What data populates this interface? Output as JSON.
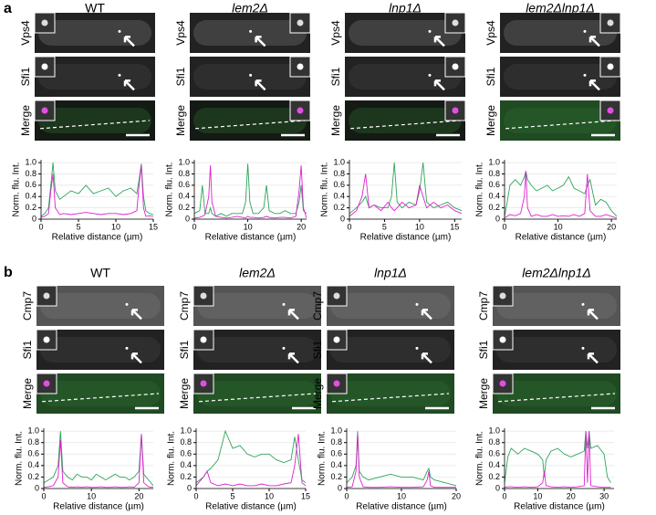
{
  "figure": {
    "a": {
      "label": "a",
      "strains": [
        "WT",
        "lem2Δ",
        "lnp1Δ",
        "lem2Δlnp1Δ"
      ],
      "channels": [
        "Vps4",
        "Sfi1",
        "Merge"
      ]
    },
    "b": {
      "label": "b",
      "strains": [
        "WT",
        "lem2Δ",
        "lnp1Δ",
        "lem2Δlnp1Δ"
      ],
      "channels": [
        "Cmp7",
        "Sfi1",
        "Merge"
      ]
    }
  },
  "chart_data": [
    {
      "type": "line",
      "xlabel": "Relative distance (µm)",
      "ylabel": "Norm. flu. Int.",
      "grid": true,
      "xlim": [
        0,
        15
      ],
      "xticks": [
        0,
        5,
        10,
        15
      ],
      "ylim": [
        0,
        1.05
      ],
      "yticks": [
        0,
        0.2,
        0.4,
        0.6,
        0.8,
        {
          "value": 1,
          "label": "1.0"
        }
      ],
      "x": [
        0,
        0.5,
        1,
        1.3,
        1.6,
        1.9,
        2.5,
        3,
        4,
        5,
        6,
        7,
        8,
        9,
        10,
        11,
        12,
        12.8,
        13.1,
        13.4,
        13.7,
        14,
        14.5,
        15
      ],
      "series": [
        {
          "color": "#2ca55a",
          "values": [
            0.05,
            0.1,
            0.2,
            0.6,
            1.0,
            0.5,
            0.35,
            0.4,
            0.5,
            0.45,
            0.6,
            0.45,
            0.5,
            0.55,
            0.4,
            0.5,
            0.55,
            0.45,
            0.7,
            0.98,
            0.4,
            0.15,
            0.1,
            0.08
          ]
        },
        {
          "color": "#e020d0",
          "values": [
            0.03,
            0.05,
            0.1,
            0.5,
            0.8,
            0.2,
            0.08,
            0.1,
            0.08,
            0.1,
            0.12,
            0.1,
            0.08,
            0.1,
            0.1,
            0.08,
            0.1,
            0.15,
            0.6,
            0.95,
            0.2,
            0.05,
            0.06,
            0.05
          ]
        }
      ]
    },
    {
      "type": "line",
      "xlabel": "Relative distance (µm)",
      "ylabel": "Norm. flu. Int.",
      "grid": true,
      "xlim": [
        0,
        21
      ],
      "xticks": [
        0,
        10,
        20
      ],
      "ylim": [
        0,
        1.05
      ],
      "yticks": [
        0,
        0.2,
        0.4,
        0.6,
        0.8,
        {
          "value": 1,
          "label": "1.0"
        }
      ],
      "x": [
        0,
        1,
        1.5,
        2,
        2.7,
        3,
        3.3,
        4,
        5,
        6,
        7,
        8,
        9,
        9.6,
        10,
        10.4,
        11,
        12,
        13,
        13.5,
        14,
        15,
        16,
        17,
        18,
        19,
        19.6,
        20,
        20.4,
        21
      ],
      "series": [
        {
          "color": "#2ca55a",
          "values": [
            0.1,
            0.15,
            0.6,
            0.1,
            0.1,
            0.2,
            0.1,
            0.05,
            0.1,
            0.05,
            0.1,
            0.1,
            0.1,
            0.3,
            0.98,
            0.3,
            0.1,
            0.1,
            0.2,
            0.6,
            0.15,
            0.1,
            0.1,
            0.15,
            0.1,
            0.1,
            0.3,
            0.6,
            0.15,
            0.1
          ]
        },
        {
          "color": "#e020d0",
          "values": [
            0.02,
            0.03,
            0.05,
            0.08,
            0.4,
            0.95,
            0.3,
            0.05,
            0.03,
            0.02,
            0.03,
            0.05,
            0.03,
            0.02,
            0.05,
            0.03,
            0.03,
            0.02,
            0.03,
            0.05,
            0.03,
            0.02,
            0.03,
            0.03,
            0.02,
            0.05,
            0.5,
            0.95,
            0.2,
            0.02
          ]
        }
      ]
    },
    {
      "type": "line",
      "xlabel": "Relative distance (µm)",
      "ylabel": "Norm. flu. Int.",
      "grid": true,
      "xlim": [
        0,
        16
      ],
      "xticks": [
        0,
        5,
        10,
        15
      ],
      "ylim": [
        0,
        1.05
      ],
      "yticks": [
        0,
        0.2,
        0.4,
        0.6,
        0.8,
        {
          "value": 1,
          "label": "1.0"
        }
      ],
      "x": [
        0,
        1,
        1.8,
        2.3,
        2.8,
        3.5,
        4.5,
        5.5,
        6,
        6.4,
        6.8,
        7.5,
        8.5,
        9.5,
        10,
        10.5,
        11,
        12,
        13,
        14,
        15,
        16
      ],
      "series": [
        {
          "color": "#2ca55a",
          "values": [
            0.1,
            0.2,
            0.3,
            0.4,
            0.2,
            0.25,
            0.2,
            0.2,
            0.4,
            1.0,
            0.3,
            0.2,
            0.3,
            0.25,
            0.5,
            1.0,
            0.3,
            0.2,
            0.25,
            0.3,
            0.2,
            0.15
          ]
        },
        {
          "color": "#e020d0",
          "values": [
            0.05,
            0.15,
            0.4,
            0.8,
            0.2,
            0.25,
            0.15,
            0.3,
            0.2,
            0.15,
            0.2,
            0.3,
            0.2,
            0.25,
            0.6,
            0.4,
            0.2,
            0.3,
            0.2,
            0.25,
            0.15,
            0.1
          ]
        }
      ]
    },
    {
      "type": "line",
      "xlabel": "Relative distance (µm)",
      "ylabel": "Norm. flu. Int.",
      "grid": true,
      "xlim": [
        0,
        21
      ],
      "xticks": [
        0,
        10,
        20
      ],
      "ylim": [
        0,
        1.05
      ],
      "yticks": [
        0,
        0.2,
        0.4,
        0.6,
        0.8,
        {
          "value": 1,
          "label": "1.0"
        }
      ],
      "x": [
        0,
        0.5,
        1,
        2,
        3,
        3.7,
        4,
        4.3,
        5,
        6,
        7,
        8,
        9,
        10,
        11,
        12,
        13,
        14,
        15,
        15.5,
        16,
        17,
        18,
        19,
        20,
        21
      ],
      "series": [
        {
          "color": "#2ca55a",
          "values": [
            0.05,
            0.3,
            0.6,
            0.7,
            0.6,
            0.75,
            0.85,
            0.7,
            0.6,
            0.5,
            0.55,
            0.6,
            0.5,
            0.55,
            0.6,
            0.75,
            0.55,
            0.5,
            0.45,
            0.6,
            0.7,
            0.25,
            0.35,
            0.3,
            0.15,
            0.05
          ]
        },
        {
          "color": "#e020d0",
          "values": [
            0.02,
            0.05,
            0.08,
            0.06,
            0.1,
            0.4,
            0.85,
            0.2,
            0.05,
            0.08,
            0.05,
            0.05,
            0.08,
            0.05,
            0.06,
            0.05,
            0.08,
            0.05,
            0.1,
            0.8,
            0.15,
            0.05,
            0.05,
            0.08,
            0.05,
            0.02
          ]
        }
      ]
    },
    {
      "type": "line",
      "xlabel": "Relative distance (µm)",
      "ylabel": "Norm. flu. Int.",
      "grid": true,
      "xlim": [
        0,
        23
      ],
      "xticks": [
        0,
        10,
        20
      ],
      "ylim": [
        0,
        1.05
      ],
      "yticks": [
        0,
        0.2,
        0.4,
        0.6,
        0.8,
        {
          "value": 1,
          "label": "1.0"
        }
      ],
      "x": [
        0,
        1,
        2,
        3,
        3.5,
        4,
        5,
        6,
        7,
        8,
        9,
        10,
        11,
        12,
        13,
        14,
        15,
        16,
        17,
        18,
        19,
        20,
        20.5,
        21,
        22,
        23
      ],
      "series": [
        {
          "color": "#2ca55a",
          "values": [
            0.1,
            0.15,
            0.2,
            0.4,
            1.0,
            0.3,
            0.2,
            0.15,
            0.25,
            0.2,
            0.2,
            0.15,
            0.25,
            0.2,
            0.15,
            0.2,
            0.25,
            0.2,
            0.2,
            0.15,
            0.2,
            0.3,
            0.95,
            0.25,
            0.15,
            0.05
          ]
        },
        {
          "color": "#e020d0",
          "values": [
            0.02,
            0.03,
            0.05,
            0.2,
            0.85,
            0.1,
            0.03,
            0.02,
            0.03,
            0.02,
            0.03,
            0.02,
            0.02,
            0.03,
            0.02,
            0.02,
            0.03,
            0.02,
            0.02,
            0.03,
            0.02,
            0.1,
            0.95,
            0.1,
            0.03,
            0.02
          ]
        }
      ]
    },
    {
      "type": "line",
      "xlabel": "Relative distance (µm)",
      "ylabel": "Norm. flu. Int.",
      "grid": true,
      "xlim": [
        0,
        15
      ],
      "xticks": [
        0,
        5,
        10,
        15
      ],
      "ylim": [
        0,
        1.05
      ],
      "yticks": [
        0,
        0.2,
        0.4,
        0.6,
        0.8,
        {
          "value": 1,
          "label": "1.0"
        }
      ],
      "x": [
        0,
        1,
        1.5,
        2,
        3,
        4,
        5,
        6,
        7,
        8,
        9,
        10,
        11,
        12,
        13,
        13.5,
        14,
        14.5,
        15
      ],
      "series": [
        {
          "color": "#2ca55a",
          "values": [
            0.1,
            0.2,
            0.3,
            0.35,
            0.5,
            1.0,
            0.7,
            0.75,
            0.6,
            0.55,
            0.6,
            0.6,
            0.5,
            0.45,
            0.5,
            0.9,
            0.5,
            0.15,
            0.1
          ]
        },
        {
          "color": "#e020d0",
          "values": [
            0.05,
            0.2,
            0.3,
            0.1,
            0.05,
            0.08,
            0.05,
            0.08,
            0.05,
            0.05,
            0.08,
            0.05,
            0.05,
            0.08,
            0.1,
            0.4,
            0.95,
            0.1,
            0.05
          ]
        }
      ]
    },
    {
      "type": "line",
      "xlabel": "Relative distance (µm)",
      "ylabel": "Norm. flu. Int.",
      "grid": true,
      "xlim": [
        0,
        20
      ],
      "xticks": [
        0,
        10,
        20
      ],
      "ylim": [
        0,
        1.05
      ],
      "yticks": [
        0,
        0.2,
        0.4,
        0.6,
        0.8,
        {
          "value": 1,
          "label": "1.0"
        }
      ],
      "x": [
        0,
        1,
        1.7,
        2,
        2.3,
        3,
        4,
        6,
        8,
        10,
        12,
        14,
        14.7,
        15,
        15.3,
        16,
        18,
        20
      ],
      "series": [
        {
          "color": "#2ca55a",
          "values": [
            0.1,
            0.2,
            0.4,
            1.0,
            0.3,
            0.2,
            0.15,
            0.2,
            0.25,
            0.2,
            0.2,
            0.15,
            0.3,
            0.35,
            0.2,
            0.15,
            0.1,
            0.05
          ]
        },
        {
          "color": "#e020d0",
          "values": [
            0.02,
            0.03,
            0.3,
            0.95,
            0.2,
            0.03,
            0.02,
            0.02,
            0.03,
            0.02,
            0.02,
            0.03,
            0.15,
            0.3,
            0.05,
            0.02,
            0.02,
            0.02
          ]
        }
      ]
    },
    {
      "type": "line",
      "xlabel": "Relative distance (µm)",
      "ylabel": "Norm. flu. Int.",
      "grid": true,
      "xlim": [
        0,
        33
      ],
      "xticks": [
        0,
        10,
        20,
        30
      ],
      "ylim": [
        0,
        1.05
      ],
      "yticks": [
        0,
        0.2,
        0.4,
        0.6,
        0.8,
        {
          "value": 1,
          "label": "1.0"
        }
      ],
      "x": [
        0,
        1,
        2,
        4,
        6,
        8,
        10,
        11.5,
        12,
        12.5,
        14,
        16,
        18,
        20,
        22,
        24,
        24.5,
        25,
        25.5,
        26,
        28,
        30,
        31,
        32
      ],
      "series": [
        {
          "color": "#2ca55a",
          "values": [
            0.1,
            0.55,
            0.7,
            0.6,
            0.7,
            0.65,
            0.6,
            0.5,
            0.2,
            0.5,
            0.65,
            0.7,
            0.6,
            0.55,
            0.6,
            0.65,
            1.0,
            0.7,
            1.0,
            0.7,
            0.75,
            0.6,
            0.2,
            0.1
          ]
        },
        {
          "color": "#e020d0",
          "values": [
            0.02,
            0.03,
            0.03,
            0.02,
            0.03,
            0.02,
            0.03,
            0.1,
            0.3,
            0.05,
            0.03,
            0.02,
            0.03,
            0.02,
            0.03,
            0.05,
            1.0,
            0.1,
            1.0,
            0.05,
            0.03,
            0.02,
            0.02,
            0.02
          ]
        }
      ]
    }
  ]
}
